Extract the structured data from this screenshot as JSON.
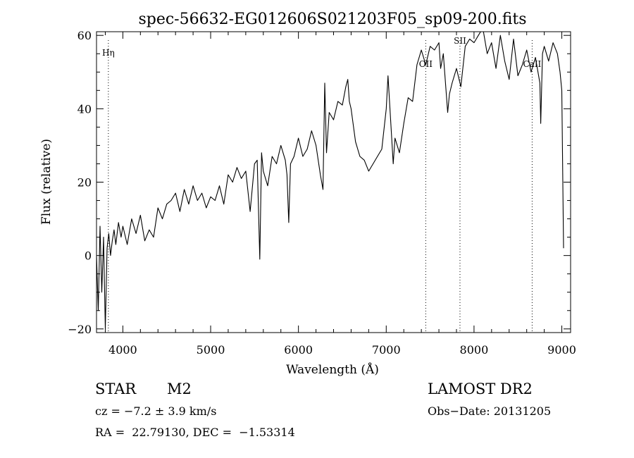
{
  "chart_data": {
    "type": "line",
    "title": "spec-56632-EG012606S021203F05_sp09-200.fits",
    "xlabel": "Wavelength (Å)",
    "ylabel": "Flux (relative)",
    "xlim": [
      3700,
      9100
    ],
    "ylim": [
      -21,
      61
    ],
    "xticks": [
      4000,
      5000,
      6000,
      7000,
      8000,
      9000
    ],
    "yticks": [
      -20,
      0,
      20,
      40,
      60
    ],
    "grid": false,
    "line_color": "#000000",
    "series": [
      {
        "x": [
          3700,
          3720,
          3740,
          3760,
          3780,
          3800,
          3820,
          3840,
          3860,
          3880,
          3900,
          3920,
          3950,
          3980,
          4000,
          4050,
          4100,
          4150,
          4200,
          4250,
          4300,
          4350,
          4400,
          4450,
          4500,
          4550,
          4600,
          4650,
          4700,
          4750,
          4800,
          4850,
          4900,
          4950,
          5000,
          5050,
          5100,
          5150,
          5200,
          5250,
          5300,
          5350,
          5400,
          5450,
          5500,
          5530,
          5560,
          5580,
          5600,
          5650,
          5700,
          5750,
          5800,
          5850,
          5870,
          5890,
          5910,
          5950,
          6000,
          6050,
          6100,
          6150,
          6200,
          6250,
          6280,
          6300,
          6320,
          6350,
          6400,
          6450,
          6500,
          6540,
          6562,
          6580,
          6600,
          6650,
          6700,
          6750,
          6800,
          6850,
          6900,
          6950,
          7000,
          7020,
          7050,
          7080,
          7100,
          7150,
          7200,
          7250,
          7300,
          7350,
          7400,
          7450,
          7500,
          7550,
          7600,
          7620,
          7650,
          7700,
          7720,
          7750,
          7800,
          7850,
          7900,
          7950,
          8000,
          8050,
          8100,
          8150,
          8200,
          8250,
          8300,
          8350,
          8400,
          8450,
          8500,
          8550,
          8600,
          8650,
          8700,
          8750,
          8760,
          8780,
          8800,
          8850,
          8900,
          8950,
          8980,
          9000,
          9020
        ],
        "y": [
          0,
          -15,
          8,
          -10,
          5,
          -20,
          2,
          6,
          0,
          4,
          7,
          3,
          9,
          5,
          8,
          3,
          10,
          6,
          11,
          4,
          7,
          5,
          13,
          10,
          14,
          15,
          17,
          12,
          18,
          14,
          19,
          15,
          17,
          13,
          16,
          15,
          19,
          14,
          22,
          20,
          24,
          21,
          23,
          12,
          25,
          26,
          -1,
          28,
          23,
          19,
          27,
          25,
          30,
          26,
          22,
          9,
          25,
          27,
          32,
          27,
          29,
          34,
          30,
          22,
          18,
          47,
          28,
          39,
          37,
          42,
          41,
          46,
          48,
          42,
          40,
          31,
          27,
          26,
          23,
          25,
          27,
          29,
          40,
          49,
          37,
          25,
          32,
          28,
          36,
          43,
          42,
          52,
          56,
          52,
          57,
          56,
          58,
          51,
          55,
          39,
          44,
          47,
          51,
          46,
          57,
          59,
          58,
          60,
          62,
          55,
          58,
          51,
          60,
          53,
          48,
          59,
          49,
          52,
          56,
          50,
          54,
          47,
          36,
          55,
          57,
          53,
          58,
          55,
          50,
          45,
          2
        ]
      }
    ],
    "line_markers": [
      {
        "label": "Hη",
        "x": 3835
      },
      {
        "label": "OII",
        "x": 7450
      },
      {
        "label": "SII",
        "x": 7840
      },
      {
        "label": "CaII",
        "x": 8662
      }
    ]
  },
  "info": {
    "class": "STAR",
    "subclass": "M2",
    "survey": "LAMOST DR2",
    "cz": "cz = −7.2 ± 3.9 km/s",
    "obs_date": "Obs−Date: 20131205",
    "coords": "RA =  22.79130, DEC =  −1.53314"
  }
}
